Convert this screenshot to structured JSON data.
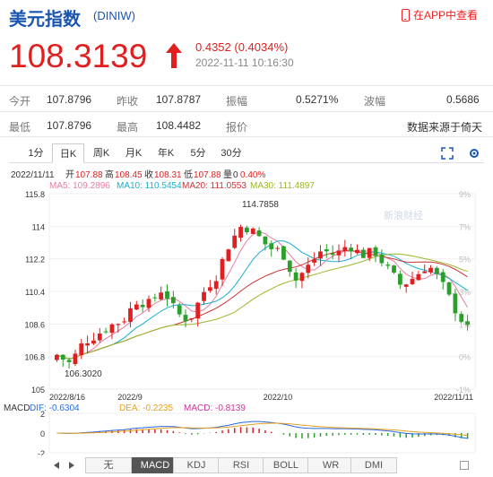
{
  "header": {
    "title": "美元指数",
    "code": "(DINIW)",
    "app_link": "在APP中查看",
    "price": "108.3139",
    "change": "0.4352 (0.4034%)",
    "datetime": "2022-11-11 10:16:30",
    "up_color": "#e02020"
  },
  "stats": {
    "row1": [
      {
        "label": "今开",
        "value": "107.8796"
      },
      {
        "label": "昨收",
        "value": "107.8787"
      },
      {
        "label": "振幅",
        "value": "0.5271%"
      },
      {
        "label": "波幅",
        "value": "0.5686"
      }
    ],
    "row2": [
      {
        "label": "最低",
        "value": "107.8796"
      },
      {
        "label": "最高",
        "value": "108.4482"
      },
      {
        "label": "报价",
        "value": ""
      },
      {
        "label": "数据来源于倚天",
        "value": ""
      }
    ]
  },
  "tabs": [
    "1分",
    "日K",
    "周K",
    "月K",
    "年K",
    "5分",
    "30分"
  ],
  "active_tab": "日K",
  "chart_info": {
    "date": "2022/11/11",
    "open_label": "开",
    "open": "107.88",
    "high_label": "高",
    "high": "108.45",
    "close_label": "收",
    "close": "108.31",
    "low_label": "低",
    "low": "107.88",
    "vol_label": "量",
    "vol": "0",
    "pct": "0.40%",
    "ma5": "MA5: 109.2896",
    "ma10": "MA10: 110.5454",
    "ma20": "MA20: 111.0553",
    "ma30": "MA30: 111.4897",
    "macd_label": "MACD",
    "dif": "DIF: -0.6304",
    "dea": "DEA: -0.2235",
    "macd": "MACD: -0.8139",
    "watermark": "新浪财经"
  },
  "chart_data": {
    "type": "candlestick",
    "ylim": [
      105,
      115.8
    ],
    "y_ticks": [
      "115.8",
      "114",
      "112.2",
      "110.4",
      "108.6",
      "106.8",
      "105"
    ],
    "right_ticks": [
      "9%",
      "7%",
      "5%",
      "3%",
      "1%",
      "0%",
      "-1%"
    ],
    "x_labels": [
      "2022/8/16",
      "2022/9",
      "2022/10",
      "2022/11/11"
    ],
    "max_label": "114.7858",
    "min_label": "106.3020",
    "macd_ticks": [
      "2",
      "0",
      "-2"
    ],
    "colors": {
      "up": "#e02020",
      "down": "#2aa02a",
      "ma5": "#e87ca0",
      "ma10": "#1ab0d0",
      "ma20": "#cc3333",
      "ma30": "#9ab828"
    }
  },
  "buttons": [
    "无",
    "MACD",
    "KDJ",
    "RSI",
    "BOLL",
    "WR",
    "DMI"
  ],
  "active_button": "MACD"
}
